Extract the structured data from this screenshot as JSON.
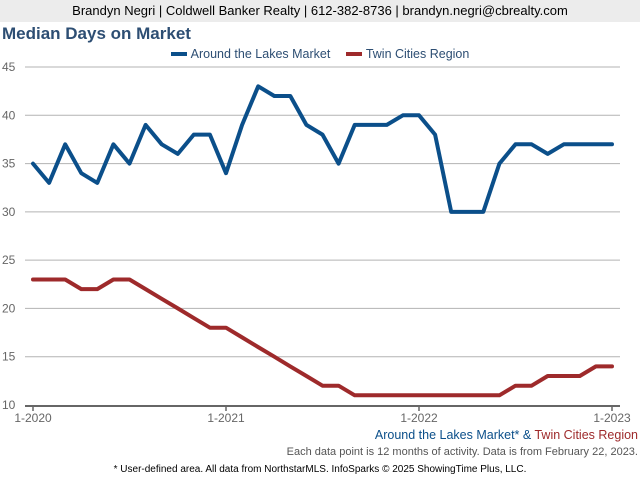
{
  "header": {
    "text": "Brandyn Negri | Coldwell Banker Realty | 612-382-8736 | brandyn.negri@cbrealty.com"
  },
  "colors": {
    "series1": "#0b4f8a",
    "series2": "#9e2a2b",
    "title": "#2d4e73",
    "grid": "#b3b3b3",
    "axis": "#666666"
  },
  "footer": {
    "series1_label": "Around the Lakes Market*",
    "connector": " & ",
    "series2_label": "Twin Cities Region",
    "note": "Each data point is 12 months of activity. Data is from February 22, 2023.",
    "disclaimer": "* User-defined area. All data from NorthstarMLS. InfoSparks © 2025 ShowingTime Plus, LLC."
  },
  "chart_data": {
    "type": "line",
    "title": "Median Days on Market",
    "xlabel": "",
    "ylabel": "",
    "ylim": [
      10,
      45
    ],
    "yticks": [
      10,
      15,
      20,
      25,
      30,
      35,
      40,
      45
    ],
    "x_tick_labels": [
      "1-2020",
      "1-2021",
      "1-2022",
      "1-2023"
    ],
    "x_tick_month_index": [
      0,
      12,
      24,
      36
    ],
    "x": [
      "1-2020",
      "2-2020",
      "3-2020",
      "4-2020",
      "5-2020",
      "6-2020",
      "7-2020",
      "8-2020",
      "9-2020",
      "10-2020",
      "11-2020",
      "12-2020",
      "1-2021",
      "2-2021",
      "3-2021",
      "4-2021",
      "5-2021",
      "6-2021",
      "7-2021",
      "8-2021",
      "9-2021",
      "10-2021",
      "11-2021",
      "12-2021",
      "1-2022",
      "2-2022",
      "3-2022",
      "4-2022",
      "5-2022",
      "6-2022",
      "7-2022",
      "8-2022",
      "9-2022",
      "10-2022",
      "11-2022",
      "12-2022",
      "1-2023"
    ],
    "grid": true,
    "legend_position": "top-center",
    "series": [
      {
        "name": "Around the Lakes Market",
        "values": [
          35,
          33,
          37,
          34,
          33,
          37,
          35,
          39,
          37,
          36,
          38,
          38,
          34,
          39,
          43,
          42,
          42,
          39,
          38,
          35,
          39,
          39,
          39,
          40,
          40,
          38,
          30,
          30,
          30,
          35,
          37,
          37,
          36,
          37,
          37,
          37,
          37
        ]
      },
      {
        "name": "Twin Cities Region",
        "values": [
          23,
          23,
          23,
          22,
          22,
          23,
          23,
          22,
          21,
          20,
          19,
          18,
          18,
          17,
          16,
          15,
          14,
          13,
          12,
          12,
          11,
          11,
          11,
          11,
          11,
          11,
          11,
          11,
          11,
          11,
          12,
          12,
          13,
          13,
          13,
          14,
          14
        ]
      }
    ]
  }
}
